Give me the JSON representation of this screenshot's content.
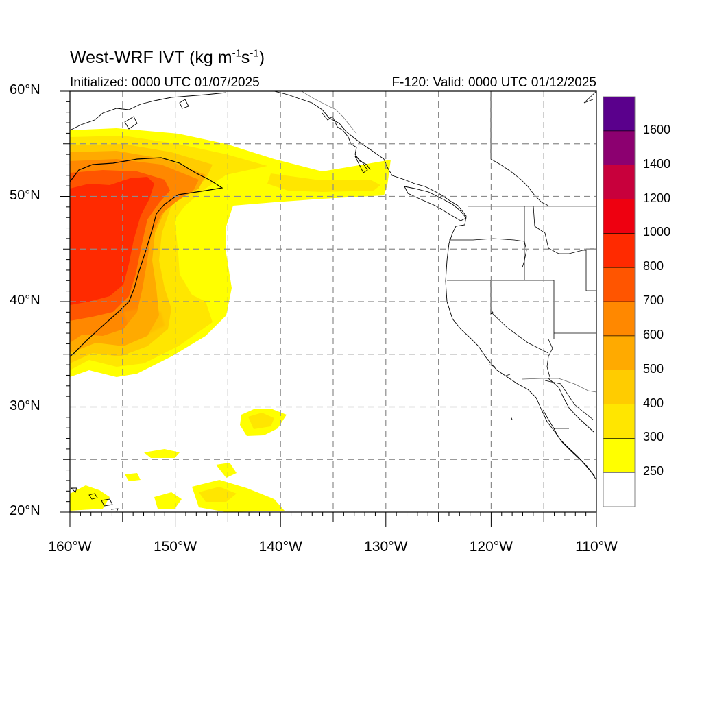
{
  "title": {
    "prefix": "West-WRF IVT (kg m",
    "exp1": "-1",
    "mid": "s",
    "exp2": "-1",
    "suffix": ")"
  },
  "subtitle_left": "Initialized: 0000 UTC 01/07/2025",
  "subtitle_right": "F-120: Valid: 0000 UTC 01/12/2025",
  "map": {
    "lon_range": [
      -160,
      -110
    ],
    "lat_range": [
      20,
      60
    ],
    "lon_ticks": [
      {
        "value": -160,
        "label": "160°W"
      },
      {
        "value": -150,
        "label": "150°W"
      },
      {
        "value": -140,
        "label": "140°W"
      },
      {
        "value": -130,
        "label": "130°W"
      },
      {
        "value": -120,
        "label": "120°W"
      },
      {
        "value": -110,
        "label": "110°W"
      }
    ],
    "lat_ticks": [
      {
        "value": 60,
        "label": "60°N"
      },
      {
        "value": 50,
        "label": "50°N"
      },
      {
        "value": 40,
        "label": "40°N"
      },
      {
        "value": 30,
        "label": "30°N"
      },
      {
        "value": 20,
        "label": "20°N"
      }
    ],
    "grid_spacing_deg": 5,
    "grid": "dashed"
  },
  "colorbar": {
    "levels": [
      {
        "label": "250",
        "color": "#ffff00"
      },
      {
        "label": "300",
        "color": "#ffe600"
      },
      {
        "label": "400",
        "color": "#ffcc00"
      },
      {
        "label": "500",
        "color": "#ffaa00"
      },
      {
        "label": "600",
        "color": "#ff8800"
      },
      {
        "label": "700",
        "color": "#ff5500"
      },
      {
        "label": "800",
        "color": "#ff2a00"
      },
      {
        "label": "1000",
        "color": "#ee0010"
      },
      {
        "label": "1200",
        "color": "#c8003c"
      },
      {
        "label": "1400",
        "color": "#8c0070"
      },
      {
        "label": "1600",
        "color": "#5a008c"
      }
    ],
    "below_min_color": "#ffffff"
  }
}
